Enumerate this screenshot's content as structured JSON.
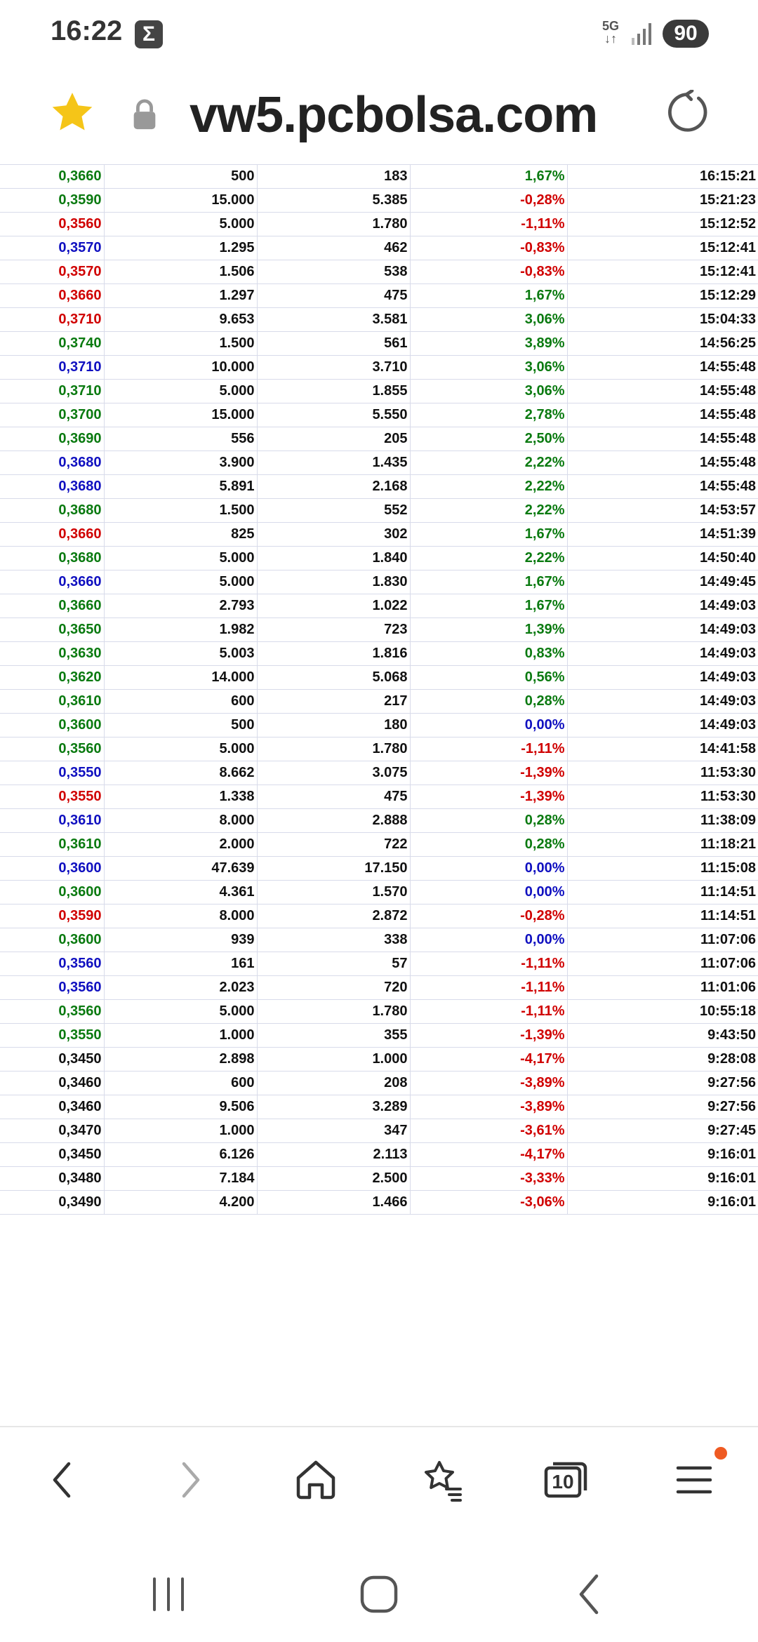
{
  "status": {
    "time": "16:22",
    "network": "5G",
    "battery": "90"
  },
  "browser": {
    "url": "vw5.pcbolsa.com"
  },
  "colors": {
    "green": "#0a7a10",
    "red": "#d00000",
    "blue": "#1010c0",
    "black": "#111111"
  },
  "trades": [
    {
      "price": "0,3660",
      "price_color": "green",
      "shares": "500",
      "amount": "183",
      "change": "1,67%",
      "change_color": "green",
      "time": "16:15:21"
    },
    {
      "price": "0,3590",
      "price_color": "green",
      "shares": "15.000",
      "amount": "5.385",
      "change": "-0,28%",
      "change_color": "red",
      "time": "15:21:23"
    },
    {
      "price": "0,3560",
      "price_color": "red",
      "shares": "5.000",
      "amount": "1.780",
      "change": "-1,11%",
      "change_color": "red",
      "time": "15:12:52"
    },
    {
      "price": "0,3570",
      "price_color": "blue",
      "shares": "1.295",
      "amount": "462",
      "change": "-0,83%",
      "change_color": "red",
      "time": "15:12:41"
    },
    {
      "price": "0,3570",
      "price_color": "red",
      "shares": "1.506",
      "amount": "538",
      "change": "-0,83%",
      "change_color": "red",
      "time": "15:12:41"
    },
    {
      "price": "0,3660",
      "price_color": "red",
      "shares": "1.297",
      "amount": "475",
      "change": "1,67%",
      "change_color": "green",
      "time": "15:12:29"
    },
    {
      "price": "0,3710",
      "price_color": "red",
      "shares": "9.653",
      "amount": "3.581",
      "change": "3,06%",
      "change_color": "green",
      "time": "15:04:33"
    },
    {
      "price": "0,3740",
      "price_color": "green",
      "shares": "1.500",
      "amount": "561",
      "change": "3,89%",
      "change_color": "green",
      "time": "14:56:25"
    },
    {
      "price": "0,3710",
      "price_color": "blue",
      "shares": "10.000",
      "amount": "3.710",
      "change": "3,06%",
      "change_color": "green",
      "time": "14:55:48"
    },
    {
      "price": "0,3710",
      "price_color": "green",
      "shares": "5.000",
      "amount": "1.855",
      "change": "3,06%",
      "change_color": "green",
      "time": "14:55:48"
    },
    {
      "price": "0,3700",
      "price_color": "green",
      "shares": "15.000",
      "amount": "5.550",
      "change": "2,78%",
      "change_color": "green",
      "time": "14:55:48"
    },
    {
      "price": "0,3690",
      "price_color": "green",
      "shares": "556",
      "amount": "205",
      "change": "2,50%",
      "change_color": "green",
      "time": "14:55:48"
    },
    {
      "price": "0,3680",
      "price_color": "blue",
      "shares": "3.900",
      "amount": "1.435",
      "change": "2,22%",
      "change_color": "green",
      "time": "14:55:48"
    },
    {
      "price": "0,3680",
      "price_color": "blue",
      "shares": "5.891",
      "amount": "2.168",
      "change": "2,22%",
      "change_color": "green",
      "time": "14:55:48"
    },
    {
      "price": "0,3680",
      "price_color": "green",
      "shares": "1.500",
      "amount": "552",
      "change": "2,22%",
      "change_color": "green",
      "time": "14:53:57"
    },
    {
      "price": "0,3660",
      "price_color": "red",
      "shares": "825",
      "amount": "302",
      "change": "1,67%",
      "change_color": "green",
      "time": "14:51:39"
    },
    {
      "price": "0,3680",
      "price_color": "green",
      "shares": "5.000",
      "amount": "1.840",
      "change": "2,22%",
      "change_color": "green",
      "time": "14:50:40"
    },
    {
      "price": "0,3660",
      "price_color": "blue",
      "shares": "5.000",
      "amount": "1.830",
      "change": "1,67%",
      "change_color": "green",
      "time": "14:49:45"
    },
    {
      "price": "0,3660",
      "price_color": "green",
      "shares": "2.793",
      "amount": "1.022",
      "change": "1,67%",
      "change_color": "green",
      "time": "14:49:03"
    },
    {
      "price": "0,3650",
      "price_color": "green",
      "shares": "1.982",
      "amount": "723",
      "change": "1,39%",
      "change_color": "green",
      "time": "14:49:03"
    },
    {
      "price": "0,3630",
      "price_color": "green",
      "shares": "5.003",
      "amount": "1.816",
      "change": "0,83%",
      "change_color": "green",
      "time": "14:49:03"
    },
    {
      "price": "0,3620",
      "price_color": "green",
      "shares": "14.000",
      "amount": "5.068",
      "change": "0,56%",
      "change_color": "green",
      "time": "14:49:03"
    },
    {
      "price": "0,3610",
      "price_color": "green",
      "shares": "600",
      "amount": "217",
      "change": "0,28%",
      "change_color": "green",
      "time": "14:49:03"
    },
    {
      "price": "0,3600",
      "price_color": "green",
      "shares": "500",
      "amount": "180",
      "change": "0,00%",
      "change_color": "blue",
      "time": "14:49:03"
    },
    {
      "price": "0,3560",
      "price_color": "green",
      "shares": "5.000",
      "amount": "1.780",
      "change": "-1,11%",
      "change_color": "red",
      "time": "14:41:58"
    },
    {
      "price": "0,3550",
      "price_color": "blue",
      "shares": "8.662",
      "amount": "3.075",
      "change": "-1,39%",
      "change_color": "red",
      "time": "11:53:30"
    },
    {
      "price": "0,3550",
      "price_color": "red",
      "shares": "1.338",
      "amount": "475",
      "change": "-1,39%",
      "change_color": "red",
      "time": "11:53:30"
    },
    {
      "price": "0,3610",
      "price_color": "blue",
      "shares": "8.000",
      "amount": "2.888",
      "change": "0,28%",
      "change_color": "green",
      "time": "11:38:09"
    },
    {
      "price": "0,3610",
      "price_color": "green",
      "shares": "2.000",
      "amount": "722",
      "change": "0,28%",
      "change_color": "green",
      "time": "11:18:21"
    },
    {
      "price": "0,3600",
      "price_color": "blue",
      "shares": "47.639",
      "amount": "17.150",
      "change": "0,00%",
      "change_color": "blue",
      "time": "11:15:08"
    },
    {
      "price": "0,3600",
      "price_color": "green",
      "shares": "4.361",
      "amount": "1.570",
      "change": "0,00%",
      "change_color": "blue",
      "time": "11:14:51"
    },
    {
      "price": "0,3590",
      "price_color": "red",
      "shares": "8.000",
      "amount": "2.872",
      "change": "-0,28%",
      "change_color": "red",
      "time": "11:14:51"
    },
    {
      "price": "0,3600",
      "price_color": "green",
      "shares": "939",
      "amount": "338",
      "change": "0,00%",
      "change_color": "blue",
      "time": "11:07:06"
    },
    {
      "price": "0,3560",
      "price_color": "blue",
      "shares": "161",
      "amount": "57",
      "change": "-1,11%",
      "change_color": "red",
      "time": "11:07:06"
    },
    {
      "price": "0,3560",
      "price_color": "blue",
      "shares": "2.023",
      "amount": "720",
      "change": "-1,11%",
      "change_color": "red",
      "time": "11:01:06"
    },
    {
      "price": "0,3560",
      "price_color": "green",
      "shares": "5.000",
      "amount": "1.780",
      "change": "-1,11%",
      "change_color": "red",
      "time": "10:55:18"
    },
    {
      "price": "0,3550",
      "price_color": "green",
      "shares": "1.000",
      "amount": "355",
      "change": "-1,39%",
      "change_color": "red",
      "time": "9:43:50"
    },
    {
      "price": "0,3450",
      "price_color": "black",
      "shares": "2.898",
      "amount": "1.000",
      "change": "-4,17%",
      "change_color": "red",
      "time": "9:28:08"
    },
    {
      "price": "0,3460",
      "price_color": "black",
      "shares": "600",
      "amount": "208",
      "change": "-3,89%",
      "change_color": "red",
      "time": "9:27:56"
    },
    {
      "price": "0,3460",
      "price_color": "black",
      "shares": "9.506",
      "amount": "3.289",
      "change": "-3,89%",
      "change_color": "red",
      "time": "9:27:56"
    },
    {
      "price": "0,3470",
      "price_color": "black",
      "shares": "1.000",
      "amount": "347",
      "change": "-3,61%",
      "change_color": "red",
      "time": "9:27:45"
    },
    {
      "price": "0,3450",
      "price_color": "black",
      "shares": "6.126",
      "amount": "2.113",
      "change": "-4,17%",
      "change_color": "red",
      "time": "9:16:01"
    },
    {
      "price": "0,3480",
      "price_color": "black",
      "shares": "7.184",
      "amount": "2.500",
      "change": "-3,33%",
      "change_color": "red",
      "time": "9:16:01"
    },
    {
      "price": "0,3490",
      "price_color": "black",
      "shares": "4.200",
      "amount": "1.466",
      "change": "-3,06%",
      "change_color": "red",
      "time": "9:16:01"
    }
  ],
  "bottom_nav": {
    "tabs_count": "10"
  },
  "icons": {
    "bookmark": "star-icon",
    "secure": "lock-icon",
    "reload": "reload-icon",
    "back": "back-arrow-icon",
    "forward": "forward-arrow-icon",
    "home": "home-icon",
    "bookmarks": "bookmarks-star-icon",
    "tabs": "tabs-icon",
    "menu": "menu-icon",
    "recents": "recent-apps-icon",
    "sys_home": "system-home-icon",
    "sys_back": "system-back-icon"
  }
}
